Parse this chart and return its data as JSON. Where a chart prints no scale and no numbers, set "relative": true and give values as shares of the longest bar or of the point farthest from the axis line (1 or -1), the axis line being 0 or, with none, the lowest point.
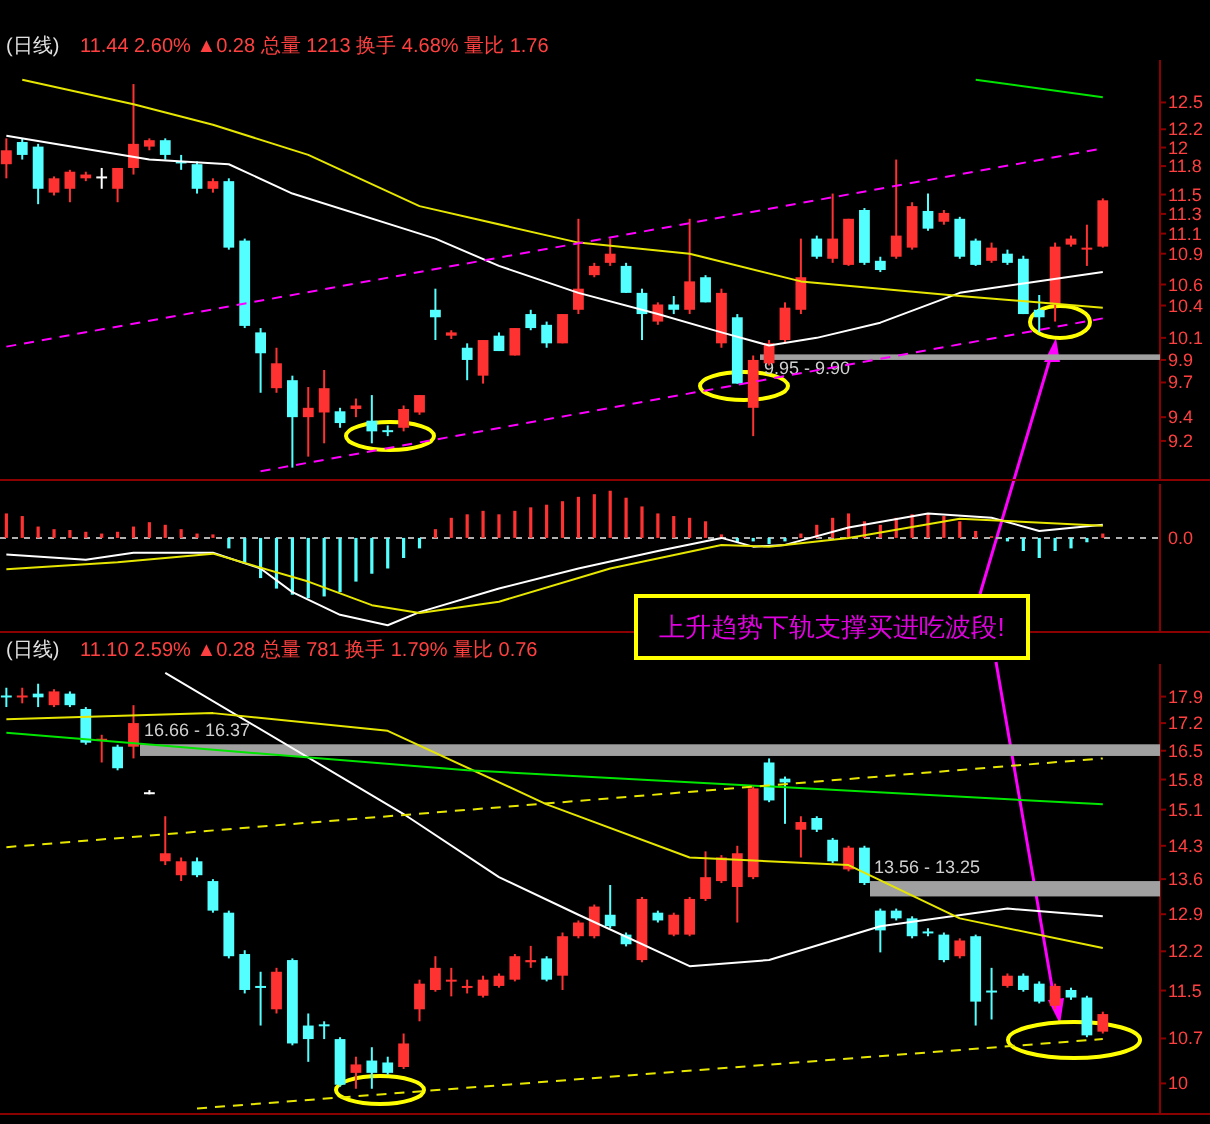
{
  "chart_data": [
    {
      "type": "candlestick",
      "title": "(日线)",
      "subtitle": "11.44 2.60% ▲0.28 总量 1213 换手 4.68% 量比 1.76",
      "log": "y",
      "tick_labels": "y",
      "categories": [
        null,
        null,
        null,
        null,
        null,
        null,
        null,
        null,
        null,
        null,
        null,
        null,
        null,
        null,
        null,
        null,
        null,
        null,
        null,
        null,
        null,
        null,
        null,
        null,
        null,
        null,
        null,
        null,
        null,
        null,
        null,
        null,
        null,
        null,
        null,
        null,
        null,
        null,
        null,
        null,
        null,
        null,
        null,
        null,
        null,
        null,
        null,
        null,
        null,
        null,
        null,
        null,
        null,
        null,
        null,
        null,
        null,
        null,
        null,
        null,
        null,
        null,
        null,
        null,
        null,
        null,
        null,
        null,
        null,
        null
      ],
      "ohlc": [
        [
          11.82,
          12.1,
          11.67,
          11.97
        ],
        [
          12.06,
          12.1,
          11.87,
          11.92
        ],
        [
          12.01,
          12.04,
          11.4,
          11.56
        ],
        [
          11.52,
          11.69,
          11.49,
          11.67
        ],
        [
          11.56,
          11.76,
          11.42,
          11.74
        ],
        [
          11.67,
          11.74,
          11.64,
          11.71
        ],
        [
          11.69,
          11.78,
          11.56,
          11.69
        ],
        [
          11.56,
          11.78,
          11.42,
          11.78
        ],
        [
          11.78,
          12.71,
          11.71,
          12.04
        ],
        [
          12.01,
          12.1,
          11.97,
          12.08
        ],
        [
          12.08,
          12.1,
          11.87,
          11.92
        ],
        [
          11.85,
          11.92,
          11.76,
          11.83
        ],
        [
          11.82,
          11.85,
          11.51,
          11.56
        ],
        [
          11.56,
          11.67,
          11.52,
          11.64
        ],
        [
          11.64,
          11.67,
          10.94,
          10.96
        ],
        [
          11.03,
          11.05,
          10.19,
          10.21
        ],
        [
          10.15,
          10.19,
          9.61,
          9.96
        ],
        [
          9.65,
          10.01,
          9.61,
          9.87
        ],
        [
          9.72,
          9.76,
          8.98,
          9.4
        ],
        [
          9.4,
          9.66,
          9.07,
          9.48
        ],
        [
          9.44,
          9.81,
          9.18,
          9.65
        ],
        [
          9.45,
          9.48,
          9.31,
          9.35
        ],
        [
          9.47,
          9.56,
          9.4,
          9.5
        ],
        [
          9.37,
          9.59,
          9.18,
          9.28
        ],
        [
          9.29,
          9.33,
          9.24,
          9.28
        ],
        [
          9.31,
          9.5,
          9.28,
          9.47
        ],
        [
          9.44,
          9.59,
          9.42,
          9.59
        ],
        [
          10.36,
          10.56,
          10.08,
          10.29
        ],
        [
          10.12,
          10.17,
          10.09,
          10.15
        ],
        [
          10.01,
          10.05,
          9.72,
          9.9
        ],
        [
          9.76,
          10.08,
          9.69,
          10.08
        ],
        [
          10.12,
          10.15,
          9.98,
          9.98
        ],
        [
          9.94,
          10.19,
          9.94,
          10.19
        ],
        [
          10.32,
          10.36,
          10.17,
          10.19
        ],
        [
          10.22,
          10.25,
          10.01,
          10.05
        ],
        [
          10.05,
          10.32,
          10.05,
          10.32
        ],
        [
          10.36,
          11.25,
          10.32,
          10.56
        ],
        [
          10.69,
          10.81,
          10.67,
          10.78
        ],
        [
          10.81,
          11.05,
          10.78,
          10.9
        ],
        [
          10.78,
          10.81,
          10.52,
          10.52
        ],
        [
          10.52,
          10.56,
          10.08,
          10.32
        ],
        [
          10.25,
          10.43,
          10.22,
          10.41
        ],
        [
          10.41,
          10.49,
          10.32,
          10.36
        ],
        [
          10.36,
          11.25,
          10.32,
          10.63
        ],
        [
          10.67,
          10.69,
          10.43,
          10.43
        ],
        [
          10.05,
          10.56,
          10.01,
          10.52
        ],
        [
          10.29,
          10.32,
          9.69,
          9.69
        ],
        [
          9.48,
          9.94,
          9.24,
          9.9
        ],
        [
          9.87,
          10.08,
          9.85,
          10.05
        ],
        [
          10.08,
          10.43,
          10.05,
          10.38
        ],
        [
          10.36,
          11.05,
          10.32,
          10.67
        ],
        [
          11.05,
          11.08,
          10.85,
          10.87
        ],
        [
          10.85,
          11.51,
          10.81,
          11.05
        ],
        [
          10.79,
          11.25,
          10.78,
          11.25
        ],
        [
          11.34,
          11.36,
          10.79,
          10.81
        ],
        [
          10.83,
          10.87,
          10.72,
          10.74
        ],
        [
          10.87,
          11.87,
          10.85,
          11.08
        ],
        [
          10.96,
          11.42,
          10.94,
          11.38
        ],
        [
          11.33,
          11.51,
          11.13,
          11.15
        ],
        [
          11.22,
          11.34,
          11.19,
          11.31
        ],
        [
          11.25,
          11.27,
          10.85,
          10.87
        ],
        [
          11.03,
          11.05,
          10.78,
          10.79
        ],
        [
          10.83,
          11.01,
          10.81,
          10.96
        ],
        [
          10.9,
          10.94,
          10.79,
          10.81
        ],
        [
          10.85,
          10.88,
          10.32,
          10.32
        ],
        [
          10.36,
          10.5,
          10.15,
          10.29
        ],
        [
          10.41,
          11.01,
          10.25,
          10.97
        ],
        [
          10.99,
          11.08,
          10.97,
          11.05
        ],
        [
          10.94,
          11.19,
          10.78,
          10.96
        ],
        [
          10.97,
          11.46,
          10.96,
          11.44
        ]
      ],
      "series": [
        {
          "type": "line",
          "color": "#ffffff",
          "values": [
            12.13,
            null,
            null,
            null,
            null,
            null,
            null,
            null,
            null,
            11.87,
            null,
            null,
            null,
            null,
            11.82,
            null,
            null,
            null,
            11.51,
            null,
            null,
            null,
            null,
            null,
            null,
            null,
            null,
            11.05,
            null,
            null,
            null,
            10.78,
            null,
            null,
            null,
            null,
            10.52,
            null,
            null,
            null,
            null,
            10.32,
            null,
            null,
            null,
            10.15,
            null,
            null,
            10.03,
            null,
            null,
            10.1,
            null,
            null,
            null,
            10.24,
            null,
            null,
            null,
            null,
            10.52,
            null,
            null,
            null,
            10.61,
            null,
            null,
            null,
            null,
            10.72
          ]
        },
        {
          "type": "line",
          "color": "#e6e600",
          "values": [
            null,
            12.76,
            null,
            null,
            null,
            null,
            null,
            null,
            12.48,
            null,
            null,
            null,
            null,
            12.25,
            null,
            null,
            null,
            null,
            null,
            11.92,
            null,
            null,
            null,
            null,
            null,
            null,
            11.38,
            null,
            null,
            null,
            null,
            null,
            null,
            null,
            null,
            null,
            11.01,
            null,
            null,
            null,
            null,
            null,
            null,
            10.9,
            null,
            null,
            null,
            null,
            null,
            null,
            10.63,
            null,
            null,
            null,
            null,
            null,
            null,
            null,
            null,
            null,
            10.49,
            null,
            null,
            null,
            null,
            null,
            null,
            null,
            null,
            10.38
          ]
        },
        {
          "type": "line",
          "color": "#00e600",
          "values": [
            null,
            null,
            null,
            null,
            null,
            null,
            null,
            null,
            null,
            null,
            null,
            null,
            null,
            null,
            null,
            null,
            null,
            null,
            null,
            null,
            null,
            null,
            null,
            null,
            null,
            null,
            null,
            null,
            null,
            null,
            null,
            null,
            null,
            null,
            null,
            null,
            null,
            null,
            null,
            null,
            null,
            null,
            null,
            null,
            null,
            null,
            null,
            null,
            null,
            null,
            null,
            null,
            null,
            null,
            null,
            null,
            null,
            null,
            null,
            null,
            null,
            12.76,
            null,
            null,
            null,
            null,
            null,
            null,
            null,
            12.56
          ]
        },
        {
          "type": "line",
          "color": "#ff00ff",
          "line_style": "dashed",
          "values": [
            10.02,
            null,
            null,
            null,
            null,
            null,
            null,
            null,
            null,
            null,
            null,
            null,
            null,
            null,
            null,
            null,
            null,
            null,
            null,
            null,
            null,
            null,
            null,
            null,
            null,
            null,
            null,
            null,
            null,
            null,
            null,
            null,
            null,
            null,
            null,
            null,
            null,
            null,
            null,
            null,
            null,
            null,
            null,
            null,
            null,
            null,
            null,
            null,
            null,
            null,
            null,
            null,
            null,
            null,
            null,
            null,
            null,
            null,
            null,
            null,
            null,
            null,
            null,
            null,
            null,
            null,
            null,
            null,
            null,
            11.99
          ]
        },
        {
          "type": "line",
          "color": "#ff00ff",
          "line_style": "dashed",
          "values": [
            null,
            null,
            null,
            null,
            null,
            null,
            null,
            null,
            null,
            null,
            null,
            null,
            null,
            null,
            null,
            null,
            8.95,
            null,
            null,
            null,
            null,
            null,
            null,
            null,
            null,
            null,
            null,
            null,
            null,
            null,
            null,
            null,
            null,
            null,
            null,
            null,
            null,
            null,
            null,
            null,
            null,
            null,
            null,
            null,
            null,
            null,
            null,
            null,
            null,
            null,
            null,
            null,
            null,
            null,
            null,
            null,
            null,
            null,
            null,
            null,
            null,
            null,
            null,
            null,
            null,
            null,
            null,
            null,
            null,
            10.28
          ]
        }
      ],
      "bands": [
        {
          "axis": "y",
          "from": 9.9,
          "to": 9.95,
          "label": "9.95 - 9.90",
          "color": "#a0a0a0"
        }
      ],
      "ylim": [
        8.88,
        12.99
      ],
      "yticks": [
        12.5,
        12.2,
        12.0,
        11.8,
        11.5,
        11.3,
        11.1,
        10.9,
        10.6,
        10.4,
        10.1,
        9.9,
        9.7,
        9.4,
        9.2
      ]
    },
    {
      "type": "bar",
      "relative": true,
      "tick_labels": false,
      "colors": [
        "#ff3232",
        "#ff3232",
        "#ff3232",
        "#ff3232",
        "#ff3232",
        "#ff3232",
        "#ff3232",
        "#ff3232",
        "#ff3232",
        "#ff3232",
        "#ff3232",
        "#ff3232",
        "#ff3232",
        "#ff3232",
        "#54ffff",
        "#54ffff",
        "#54ffff",
        "#54ffff",
        "#54ffff",
        "#54ffff",
        "#54ffff",
        "#54ffff",
        "#54ffff",
        "#54ffff",
        "#54ffff",
        "#54ffff",
        "#54ffff",
        "#ff3232",
        "#ff3232",
        "#ff3232",
        "#ff3232",
        "#ff3232",
        "#ff3232",
        "#ff3232",
        "#ff3232",
        "#ff3232",
        "#ff3232",
        "#ff3232",
        "#ff3232",
        "#ff3232",
        "#ff3232",
        "#ff3232",
        "#ff3232",
        "#ff3232",
        "#ff3232",
        "#ff3232",
        "#54ffff",
        "#54ffff",
        "#54ffff",
        "#54ffff",
        "#ff3232",
        "#ff3232",
        "#ff3232",
        "#ff3232",
        "#ff3232",
        "#ff3232",
        "#ff3232",
        "#ff3232",
        "#ff3232",
        "#ff3232",
        "#ff3232",
        "#ff3232",
        "#ff3232",
        "#54ffff",
        "#54ffff",
        "#54ffff",
        "#54ffff",
        "#54ffff",
        "#54ffff",
        "#ff3232"
      ],
      "categories": [
        null,
        null,
        null,
        null,
        null,
        null,
        null,
        null,
        null,
        null,
        null,
        null,
        null,
        null,
        null,
        null,
        null,
        null,
        null,
        null,
        null,
        null,
        null,
        null,
        null,
        null,
        null,
        null,
        null,
        null,
        null,
        null,
        null,
        null,
        null,
        null,
        null,
        null,
        null,
        null,
        null,
        null,
        null,
        null,
        null,
        null,
        null,
        null,
        null,
        null,
        null,
        null,
        null,
        null,
        null,
        null,
        null,
        null,
        null,
        null,
        null,
        null,
        null,
        null,
        null,
        null,
        null,
        null,
        null,
        null
      ],
      "values": [
        0.28,
        0.25,
        0.13,
        0.1,
        0.09,
        0.07,
        0.05,
        0.07,
        0.13,
        0.18,
        0.15,
        0.1,
        0.05,
        0.04,
        -0.12,
        -0.28,
        -0.46,
        -0.58,
        -0.65,
        -0.69,
        -0.67,
        -0.62,
        -0.5,
        -0.41,
        -0.35,
        -0.23,
        -0.12,
        0.1,
        0.23,
        0.27,
        0.31,
        0.27,
        0.31,
        0.35,
        0.38,
        0.42,
        0.47,
        0.5,
        0.54,
        0.46,
        0.36,
        0.28,
        0.25,
        0.23,
        0.19,
        0.04,
        -0.05,
        -0.04,
        -0.07,
        -0.04,
        0.05,
        0.15,
        0.23,
        0.28,
        0.19,
        0.15,
        0.23,
        0.27,
        0.28,
        0.25,
        0.19,
        0.08,
        0.02,
        -0.04,
        -0.15,
        -0.23,
        -0.15,
        -0.12,
        -0.05,
        0.05
      ],
      "series": [
        {
          "type": "line",
          "color": "#ffffff",
          "values": [
            -0.19,
            null,
            null,
            null,
            null,
            -0.25,
            null,
            null,
            -0.17,
            null,
            null,
            null,
            null,
            -0.17,
            null,
            null,
            -0.35,
            null,
            -0.62,
            null,
            null,
            -0.88,
            null,
            null,
            -1.0,
            null,
            -0.85,
            null,
            null,
            null,
            null,
            -0.58,
            null,
            null,
            null,
            null,
            -0.35,
            null,
            null,
            null,
            null,
            -0.15,
            null,
            null,
            null,
            0.0,
            null,
            -0.1,
            null,
            -0.08,
            null,
            null,
            null,
            0.12,
            null,
            null,
            null,
            null,
            0.28,
            null,
            null,
            null,
            0.23,
            null,
            null,
            0.08,
            null,
            null,
            null,
            0.15
          ]
        },
        {
          "type": "line",
          "color": "#e6e600",
          "values": [
            -0.36,
            null,
            null,
            null,
            null,
            null,
            null,
            -0.28,
            null,
            null,
            null,
            null,
            null,
            -0.18,
            null,
            null,
            null,
            null,
            null,
            -0.5,
            null,
            null,
            null,
            -0.77,
            null,
            null,
            -0.86,
            null,
            null,
            null,
            null,
            -0.73,
            null,
            null,
            null,
            null,
            null,
            null,
            -0.35,
            null,
            null,
            null,
            null,
            null,
            null,
            -0.08,
            null,
            null,
            -0.1,
            null,
            null,
            null,
            null,
            0.0,
            null,
            null,
            null,
            null,
            null,
            null,
            0.22,
            null,
            null,
            null,
            null,
            null,
            null,
            null,
            null,
            0.14
          ]
        }
      ],
      "ref_lines": [
        {
          "axis": "y",
          "value": 0,
          "label": "0.0",
          "color": "#b0b0b0",
          "line_style": "dashed"
        }
      ],
      "annotations": [
        "上升趋势下轨支撑买进吃波段!"
      ]
    },
    {
      "type": "candlestick",
      "title": "(日线)",
      "subtitle": "11.10 2.59% ▲0.28 总量 781 换手 1.79% 量比 0.76",
      "log": "y",
      "tick_labels": "y",
      "categories": [
        null,
        null,
        null,
        null,
        null,
        null,
        null,
        null,
        null,
        null,
        null,
        null,
        null,
        null,
        null,
        null,
        null,
        null,
        null,
        null,
        null,
        null,
        null,
        null,
        null,
        null,
        null,
        null,
        null,
        null,
        null,
        null,
        null,
        null,
        null,
        null,
        null,
        null,
        null,
        null,
        null,
        null,
        null,
        null,
        null,
        null,
        null,
        null,
        null,
        null,
        null,
        null,
        null,
        null,
        null,
        null,
        null,
        null,
        null,
        null,
        null,
        null,
        null,
        null,
        null,
        null,
        null,
        null,
        null,
        null
      ],
      "ohlc": [
        [
          17.93,
          18.14,
          17.62,
          17.88
        ],
        [
          17.88,
          18.14,
          17.72,
          17.93
        ],
        [
          17.98,
          18.25,
          17.62,
          17.88
        ],
        [
          17.67,
          18.1,
          17.62,
          18.04
        ],
        [
          17.98,
          18.04,
          17.62,
          17.67
        ],
        [
          17.57,
          17.62,
          16.65,
          16.7
        ],
        [
          16.75,
          16.9,
          16.21,
          16.8
        ],
        [
          16.6,
          16.65,
          16.02,
          16.07
        ],
        [
          16.6,
          17.67,
          16.31,
          17.2
        ],
        [
          15.5,
          15.55,
          15.45,
          15.5
        ],
        [
          13.97,
          14.95,
          13.89,
          14.14
        ],
        [
          13.68,
          14.05,
          13.56,
          13.97
        ],
        [
          13.97,
          14.05,
          13.64,
          13.68
        ],
        [
          13.56,
          13.6,
          12.93,
          12.97
        ],
        [
          12.93,
          12.97,
          12.07,
          12.11
        ],
        [
          12.15,
          12.22,
          11.45,
          11.51
        ],
        [
          11.58,
          11.83,
          10.91,
          11.55
        ],
        [
          11.18,
          11.9,
          11.11,
          11.83
        ],
        [
          12.04,
          12.07,
          10.59,
          10.62
        ],
        [
          10.91,
          11.11,
          10.33,
          10.69
        ],
        [
          10.93,
          10.98,
          10.69,
          10.91
        ],
        [
          10.69,
          10.72,
          9.95,
          9.98
        ],
        [
          10.16,
          10.41,
          9.92,
          10.29
        ],
        [
          10.35,
          10.56,
          9.92,
          10.16
        ],
        [
          10.32,
          10.41,
          10.13,
          10.16
        ],
        [
          10.25,
          10.78,
          10.22,
          10.62
        ],
        [
          11.18,
          11.69,
          10.98,
          11.62
        ],
        [
          11.51,
          12.11,
          11.48,
          11.9
        ],
        [
          11.66,
          11.9,
          11.4,
          11.69
        ],
        [
          11.55,
          11.69,
          11.45,
          11.58
        ],
        [
          11.41,
          11.76,
          11.38,
          11.69
        ],
        [
          11.58,
          11.8,
          11.55,
          11.76
        ],
        [
          11.69,
          12.15,
          11.66,
          12.11
        ],
        [
          12.0,
          12.3,
          11.9,
          12.04
        ],
        [
          12.07,
          12.11,
          11.66,
          11.69
        ],
        [
          11.76,
          12.55,
          11.51,
          12.48
        ],
        [
          12.48,
          12.78,
          12.44,
          12.74
        ],
        [
          12.48,
          13.09,
          12.44,
          13.05
        ],
        [
          12.89,
          13.48,
          12.63,
          12.67
        ],
        [
          12.51,
          12.55,
          12.29,
          12.33
        ],
        [
          12.04,
          13.24,
          12.0,
          13.2
        ],
        [
          12.93,
          12.97,
          12.74,
          12.78
        ],
        [
          12.51,
          12.93,
          12.48,
          12.89
        ],
        [
          12.51,
          13.24,
          12.48,
          13.2
        ],
        [
          13.2,
          14.18,
          13.16,
          13.64
        ],
        [
          13.56,
          14.1,
          13.52,
          14.05
        ],
        [
          13.44,
          14.3,
          12.74,
          14.14
        ],
        [
          13.64,
          15.64,
          13.6,
          15.59
        ],
        [
          16.21,
          16.31,
          15.27,
          15.31
        ],
        [
          15.82,
          15.87,
          14.78,
          15.73
        ],
        [
          14.65,
          14.95,
          14.05,
          14.82
        ],
        [
          14.91,
          14.95,
          14.6,
          14.65
        ],
        [
          14.43,
          14.47,
          13.93,
          13.97
        ],
        [
          13.8,
          14.3,
          13.76,
          14.26
        ],
        [
          14.26,
          14.3,
          13.48,
          13.52
        ],
        [
          12.97,
          13.01,
          12.18,
          12.59
        ],
        [
          12.97,
          13.01,
          12.78,
          12.82
        ],
        [
          12.82,
          12.86,
          12.44,
          12.48
        ],
        [
          12.57,
          12.63,
          12.48,
          12.55
        ],
        [
          12.51,
          12.55,
          12.0,
          12.04
        ],
        [
          12.11,
          12.44,
          12.07,
          12.4
        ],
        [
          12.48,
          12.51,
          10.91,
          11.31
        ],
        [
          11.5,
          11.9,
          11.01,
          11.48
        ],
        [
          11.58,
          11.8,
          11.55,
          11.76
        ],
        [
          11.76,
          11.8,
          11.48,
          11.51
        ],
        [
          11.62,
          11.66,
          11.28,
          11.31
        ],
        [
          11.24,
          11.62,
          11.18,
          11.58
        ],
        [
          11.51,
          11.55,
          11.34,
          11.38
        ],
        [
          11.38,
          11.41,
          10.72,
          10.75
        ],
        [
          10.81,
          11.14,
          10.78,
          11.1
        ]
      ],
      "series": [
        {
          "type": "line",
          "color": "#ffffff",
          "values": [
            null,
            null,
            null,
            null,
            null,
            null,
            null,
            null,
            null,
            null,
            18.55,
            null,
            null,
            null,
            null,
            null,
            null,
            null,
            null,
            null,
            null,
            null,
            null,
            null,
            null,
            15.0,
            null,
            null,
            null,
            null,
            null,
            13.64,
            null,
            null,
            null,
            null,
            12.89,
            null,
            null,
            null,
            null,
            null,
            null,
            11.93,
            null,
            null,
            null,
            null,
            12.04,
            null,
            null,
            null,
            null,
            null,
            null,
            12.67,
            null,
            null,
            null,
            null,
            null,
            null,
            null,
            13.01,
            null,
            null,
            null,
            null,
            null,
            12.86
          ]
        },
        {
          "type": "line",
          "color": "#e6e600",
          "values": [
            17.3,
            null,
            null,
            null,
            null,
            null,
            null,
            null,
            null,
            null,
            null,
            null,
            null,
            17.46,
            null,
            null,
            null,
            null,
            null,
            null,
            null,
            null,
            null,
            null,
            17.0,
            null,
            null,
            null,
            null,
            null,
            null,
            null,
            null,
            null,
            15.22,
            null,
            null,
            null,
            null,
            null,
            null,
            null,
            null,
            14.05,
            null,
            null,
            null,
            null,
            null,
            null,
            null,
            null,
            null,
            13.89,
            null,
            null,
            null,
            null,
            null,
            null,
            12.82,
            null,
            null,
            null,
            null,
            null,
            null,
            null,
            null,
            12.26
          ]
        },
        {
          "type": "line",
          "color": "#00e600",
          "values": [
            16.95,
            null,
            null,
            null,
            null,
            null,
            null,
            null,
            null,
            null,
            null,
            null,
            null,
            null,
            null,
            null,
            null,
            null,
            null,
            null,
            null,
            null,
            null,
            null,
            null,
            null,
            null,
            null,
            null,
            16.02,
            null,
            null,
            null,
            null,
            null,
            null,
            null,
            null,
            null,
            null,
            null,
            null,
            null,
            null,
            null,
            null,
            null,
            null,
            null,
            null,
            null,
            null,
            null,
            null,
            null,
            null,
            null,
            null,
            null,
            null,
            null,
            null,
            null,
            null,
            null,
            null,
            null,
            null,
            null,
            15.22
          ]
        },
        {
          "type": "line",
          "color": "#e6e600",
          "line_style": "dashed",
          "values": [
            14.27,
            null,
            null,
            null,
            null,
            null,
            null,
            null,
            null,
            null,
            null,
            null,
            null,
            null,
            null,
            null,
            null,
            null,
            null,
            null,
            null,
            null,
            null,
            null,
            null,
            null,
            null,
            null,
            null,
            null,
            null,
            null,
            null,
            null,
            null,
            null,
            null,
            null,
            null,
            null,
            null,
            null,
            null,
            null,
            null,
            null,
            null,
            null,
            null,
            null,
            null,
            null,
            null,
            null,
            null,
            null,
            null,
            null,
            null,
            null,
            null,
            null,
            null,
            null,
            null,
            null,
            null,
            null,
            null,
            16.31
          ]
        },
        {
          "type": "line",
          "color": "#e6e600",
          "line_style": "dashed",
          "values": [
            null,
            null,
            null,
            null,
            null,
            null,
            null,
            null,
            null,
            null,
            null,
            null,
            9.63,
            null,
            null,
            null,
            null,
            null,
            null,
            null,
            null,
            null,
            null,
            null,
            null,
            null,
            null,
            null,
            null,
            null,
            null,
            null,
            null,
            null,
            null,
            null,
            null,
            null,
            null,
            null,
            null,
            null,
            null,
            null,
            null,
            null,
            null,
            null,
            null,
            null,
            null,
            null,
            null,
            null,
            null,
            null,
            null,
            null,
            null,
            null,
            null,
            null,
            null,
            null,
            null,
            null,
            null,
            null,
            null,
            10.69
          ]
        }
      ],
      "bands": [
        {
          "axis": "y",
          "from": 16.37,
          "to": 16.66,
          "label": "16.66 - 16.37",
          "color": "#a0a0a0"
        },
        {
          "axis": "y",
          "from": 13.25,
          "to": 13.56,
          "label": "13.56 - 13.25",
          "color": "#a0a0a0"
        }
      ],
      "ylim": [
        9.55,
        18.8
      ],
      "yticks": [
        17.9,
        17.2,
        16.5,
        15.8,
        15.1,
        14.3,
        13.6,
        12.9,
        12.2,
        11.5,
        10.7,
        10.0
      ]
    }
  ]
}
